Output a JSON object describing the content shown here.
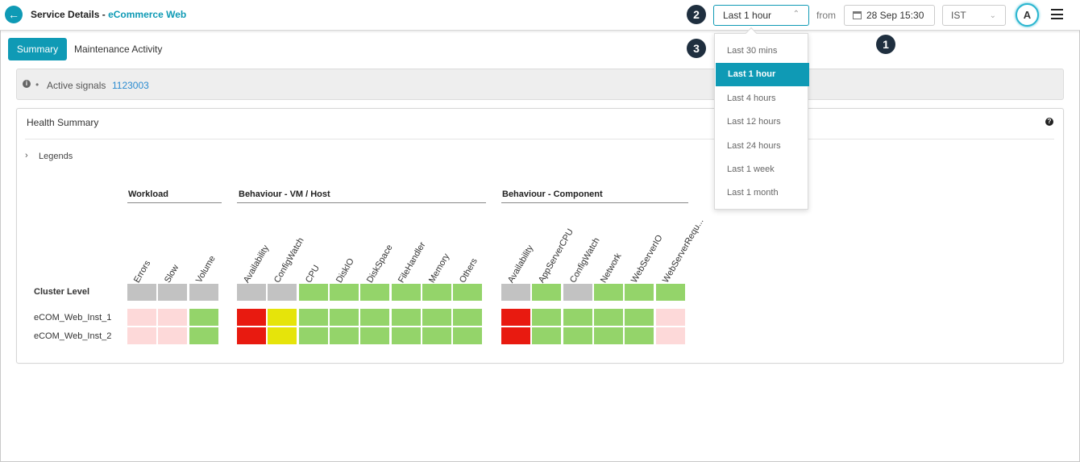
{
  "header": {
    "back_icon": "arrow-left-icon",
    "title_prefix": "Service Details - ",
    "title_service": "eCommerce Web",
    "time_range": "Last 1 hour",
    "from_label": "from",
    "date_value": "28 Sep 15:30",
    "timezone": "IST",
    "avatar_initial": "A",
    "menu_icon": "hamburger-icon"
  },
  "markers": [
    "1",
    "2",
    "3"
  ],
  "tabs": [
    {
      "label": "Summary",
      "active": true
    },
    {
      "label": "Maintenance Activity",
      "active": false
    }
  ],
  "signals": {
    "label": "Active signals",
    "value": "1123003"
  },
  "health": {
    "title": "Health Summary",
    "legends_label": "Legends",
    "groups": [
      {
        "name": "Workload",
        "columns": [
          "Errors",
          "Slow",
          "Volume"
        ]
      },
      {
        "name": "Behaviour - VM / Host",
        "columns": [
          "Availability",
          "ConfigWatch",
          "CPU",
          "DiskIO",
          "DiskSpace",
          "FileHandler",
          "Memory",
          "Others"
        ]
      },
      {
        "name": "Behaviour - Component",
        "columns": [
          "Availability",
          "AppServerCPU",
          "ConfigWatch",
          "Network",
          "WebServerIO",
          "WebServerRequ..."
        ]
      }
    ],
    "rows": [
      {
        "label": "Cluster Level",
        "bold": true,
        "status": [
          [
            "grey",
            "grey",
            "grey"
          ],
          [
            "grey",
            "grey",
            "green",
            "green",
            "green",
            "green",
            "green",
            "green"
          ],
          [
            "grey",
            "green",
            "grey",
            "green",
            "green",
            "green"
          ]
        ]
      },
      {
        "label": "eCOM_Web_Inst_1",
        "bold": false,
        "status": [
          [
            "pink",
            "pink",
            "green"
          ],
          [
            "red",
            "yellow",
            "green",
            "green",
            "green",
            "green",
            "green",
            "green"
          ],
          [
            "red",
            "green",
            "green",
            "green",
            "green",
            "pink"
          ]
        ]
      },
      {
        "label": "eCOM_Web_Inst_2",
        "bold": false,
        "status": [
          [
            "pink",
            "pink",
            "green"
          ],
          [
            "red",
            "yellow",
            "green",
            "green",
            "green",
            "green",
            "green",
            "green"
          ],
          [
            "red",
            "green",
            "green",
            "green",
            "green",
            "pink"
          ]
        ]
      }
    ],
    "status_colors": {
      "grey": "#c2c2c2",
      "green": "#94d46a",
      "red": "#e81a10",
      "yellow": "#e6e40a",
      "pink": "#fdd9d9"
    }
  },
  "time_range_options": [
    "Last 30 mins",
    "Last 1 hour",
    "Last 4 hours",
    "Last 12 hours",
    "Last 24 hours",
    "Last 1 week",
    "Last 1 month"
  ],
  "time_range_selected": "Last 1 hour",
  "colors": {
    "accent": "#0f9ab5",
    "link": "#2a8bd0",
    "marker": "#1f2f3f"
  }
}
